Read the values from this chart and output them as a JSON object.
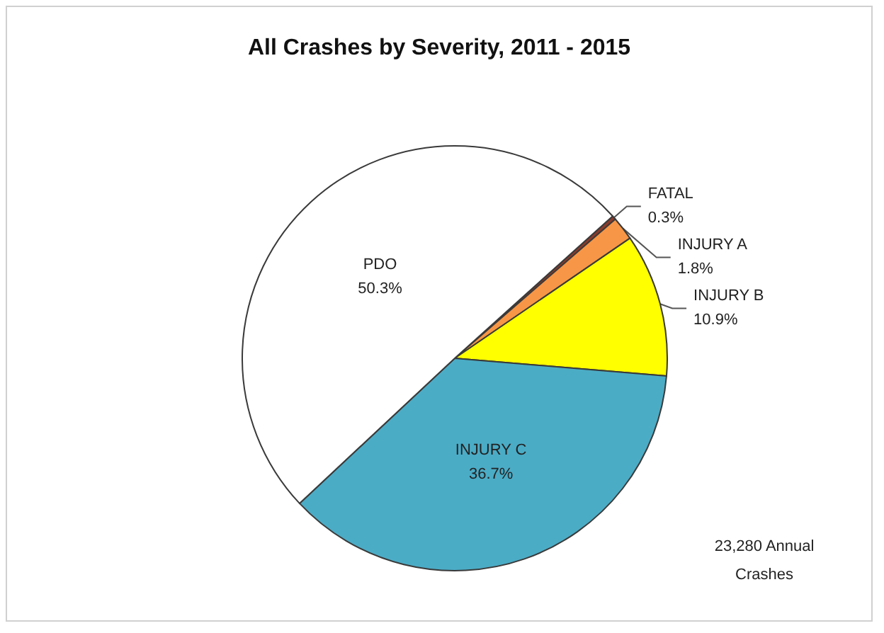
{
  "chart_data": {
    "type": "pie",
    "title": "All Crashes by Severity, 2011 - 2015",
    "categories": [
      "FATAL",
      "INJURY A",
      "INJURY B",
      "INJURY C",
      "PDO"
    ],
    "values": [
      0.3,
      1.8,
      10.9,
      36.7,
      50.3
    ],
    "value_labels": [
      "0.3%",
      "1.8%",
      "10.9%",
      "36.7%",
      "50.3%"
    ],
    "colors": [
      "#8b3a2a",
      "#f79646",
      "#ffff00",
      "#4bacc6",
      "#ffffff"
    ],
    "annotations": [
      "23,280 Annual\nCrashes"
    ],
    "legend": false
  }
}
